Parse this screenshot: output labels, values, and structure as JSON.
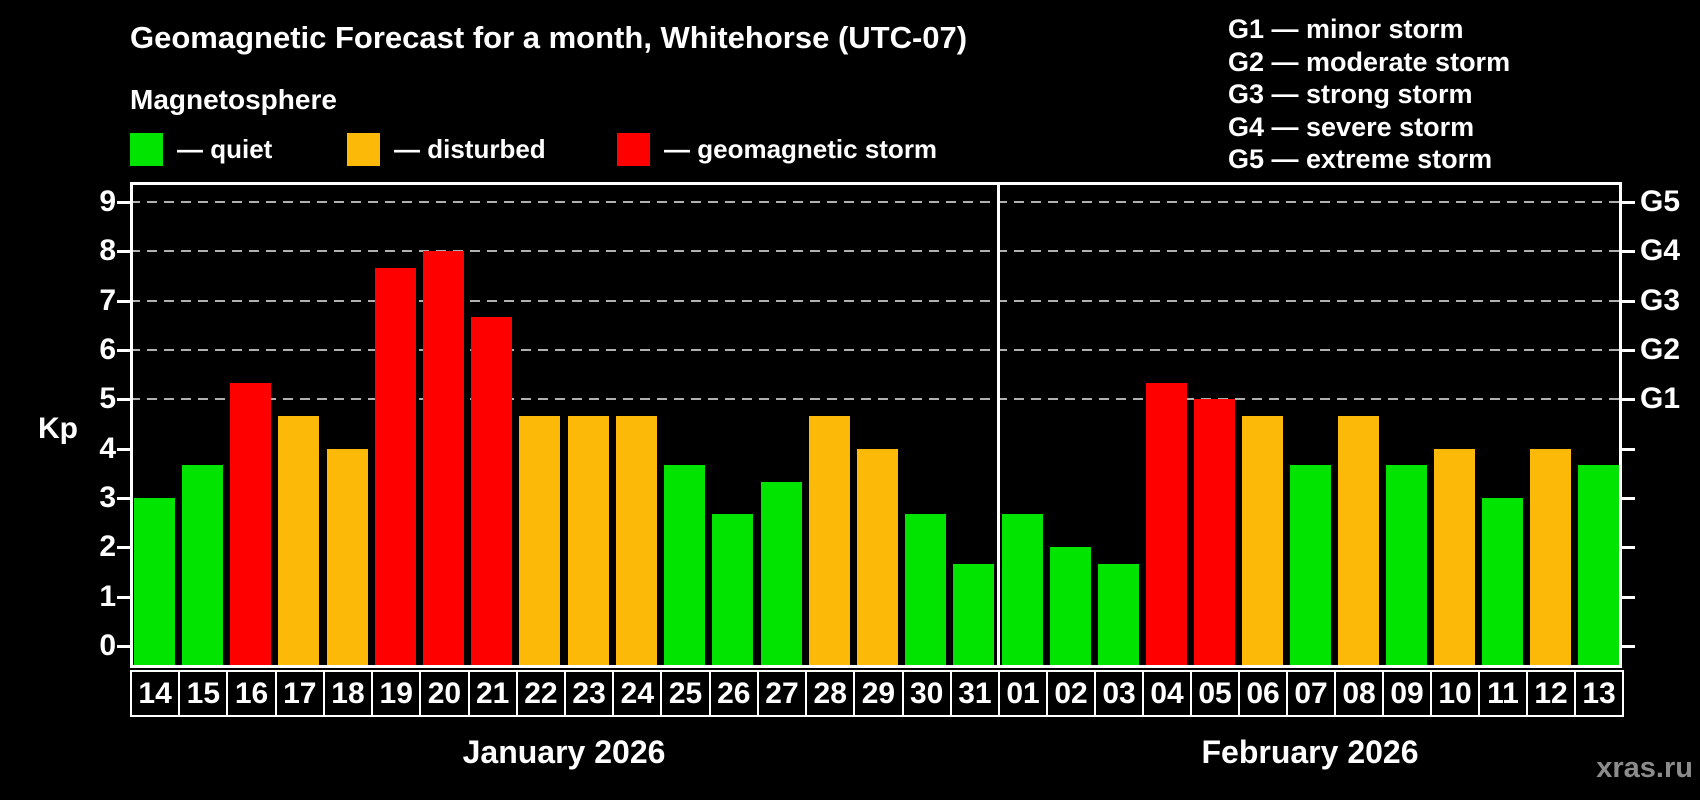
{
  "title": "Geomagnetic Forecast for a month, Whitehorse (UTC-07)",
  "subtitle": "Magnetosphere",
  "y_axis_label": "Kp",
  "watermark": "xras.ru",
  "legend": [
    {
      "key": "quiet",
      "label": "— quiet",
      "color": "#00e400"
    },
    {
      "key": "disturbed",
      "label": "— disturbed",
      "color": "#fcb908"
    },
    {
      "key": "storm",
      "label": "— geomagnetic storm",
      "color": "#fe0000"
    }
  ],
  "g_scale_legend": [
    "G1 — minor storm",
    "G2 — moderate storm",
    "G3 — strong storm",
    "G4 — severe storm",
    "G5 — extreme storm"
  ],
  "chart_data": {
    "type": "bar",
    "ylabel": "Kp",
    "ylim": [
      0,
      9.6
    ],
    "y_ticks": [
      0,
      1,
      2,
      3,
      4,
      5,
      6,
      7,
      8,
      9
    ],
    "grid": "dashed horizontal lines at Kp 5,6,7,8,9 only",
    "right_axis_levels": {
      "G1": 5,
      "G2": 6,
      "G3": 7,
      "G4": 8,
      "G5": 9
    },
    "status_colors": {
      "quiet": "#00e400",
      "disturbed": "#fcb908",
      "storm": "#fe0000"
    },
    "months": [
      {
        "label": "January 2026",
        "days": [
          {
            "day": "14",
            "kp": 3.0,
            "status": "quiet"
          },
          {
            "day": "15",
            "kp": 3.67,
            "status": "quiet"
          },
          {
            "day": "16",
            "kp": 5.33,
            "status": "storm"
          },
          {
            "day": "17",
            "kp": 4.67,
            "status": "disturbed"
          },
          {
            "day": "18",
            "kp": 4.0,
            "status": "disturbed"
          },
          {
            "day": "19",
            "kp": 7.67,
            "status": "storm"
          },
          {
            "day": "20",
            "kp": 8.0,
            "status": "storm"
          },
          {
            "day": "21",
            "kp": 6.67,
            "status": "storm"
          },
          {
            "day": "22",
            "kp": 4.67,
            "status": "disturbed"
          },
          {
            "day": "23",
            "kp": 4.67,
            "status": "disturbed"
          },
          {
            "day": "24",
            "kp": 4.67,
            "status": "disturbed"
          },
          {
            "day": "25",
            "kp": 3.67,
            "status": "quiet"
          },
          {
            "day": "26",
            "kp": 2.67,
            "status": "quiet"
          },
          {
            "day": "27",
            "kp": 3.33,
            "status": "quiet"
          },
          {
            "day": "28",
            "kp": 4.67,
            "status": "disturbed"
          },
          {
            "day": "29",
            "kp": 4.0,
            "status": "disturbed"
          },
          {
            "day": "30",
            "kp": 2.67,
            "status": "quiet"
          },
          {
            "day": "31",
            "kp": 1.67,
            "status": "quiet"
          }
        ]
      },
      {
        "label": "February 2026",
        "days": [
          {
            "day": "01",
            "kp": 2.67,
            "status": "quiet"
          },
          {
            "day": "02",
            "kp": 2.0,
            "status": "quiet"
          },
          {
            "day": "03",
            "kp": 1.67,
            "status": "quiet"
          },
          {
            "day": "04",
            "kp": 5.33,
            "status": "storm"
          },
          {
            "day": "05",
            "kp": 5.0,
            "status": "storm"
          },
          {
            "day": "06",
            "kp": 4.67,
            "status": "disturbed"
          },
          {
            "day": "07",
            "kp": 3.67,
            "status": "quiet"
          },
          {
            "day": "08",
            "kp": 4.67,
            "status": "disturbed"
          },
          {
            "day": "09",
            "kp": 3.67,
            "status": "quiet"
          },
          {
            "day": "10",
            "kp": 4.0,
            "status": "disturbed"
          },
          {
            "day": "11",
            "kp": 3.0,
            "status": "quiet"
          },
          {
            "day": "12",
            "kp": 4.0,
            "status": "disturbed"
          },
          {
            "day": "13",
            "kp": 3.67,
            "status": "quiet"
          }
        ]
      }
    ]
  }
}
